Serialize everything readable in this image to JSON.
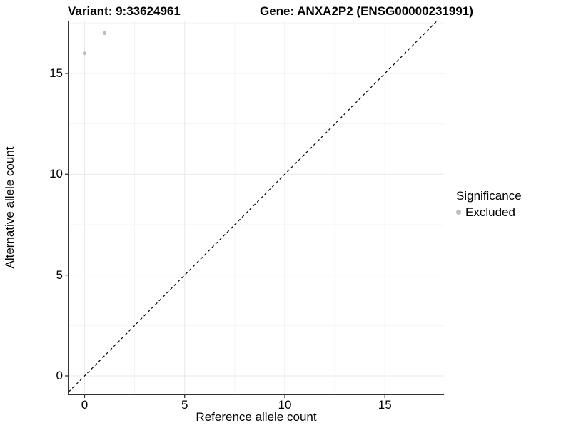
{
  "titles": {
    "variant": "Variant: 9:33624961",
    "gene": "Gene: ANXA2P2 (ENSG00000231991)"
  },
  "legend": {
    "title": "Significance",
    "items": [
      {
        "label": "Excluded",
        "color": "#bdbdbd"
      }
    ]
  },
  "chart_data": {
    "type": "scatter",
    "xlabel": "Reference allele count",
    "ylabel": "Alternative allele count",
    "x_ticks": [
      0,
      5,
      10,
      15
    ],
    "y_ticks": [
      0,
      5,
      10,
      15
    ],
    "x_minor_ticks": [
      2.5,
      7.5,
      12.5,
      17.5
    ],
    "y_minor_ticks": [
      2.5,
      7.5,
      12.5,
      17.5
    ],
    "xlim": [
      -0.8,
      17.95
    ],
    "ylim": [
      -0.92,
      17.58
    ],
    "series": [
      {
        "name": "Excluded",
        "color": "#bdbdbd",
        "points": [
          {
            "x": 0,
            "y": 16
          },
          {
            "x": 1,
            "y": 17
          }
        ]
      }
    ],
    "reference_line": {
      "kind": "identity-diagonal",
      "style": "dashed",
      "color": "#000000"
    },
    "grid": "on",
    "grid_major_color": "#e9e9e9",
    "grid_minor_color": "#f4f4f4",
    "axis_line_color": "#333333",
    "point_radius": 2.6,
    "legend_position": "right"
  }
}
